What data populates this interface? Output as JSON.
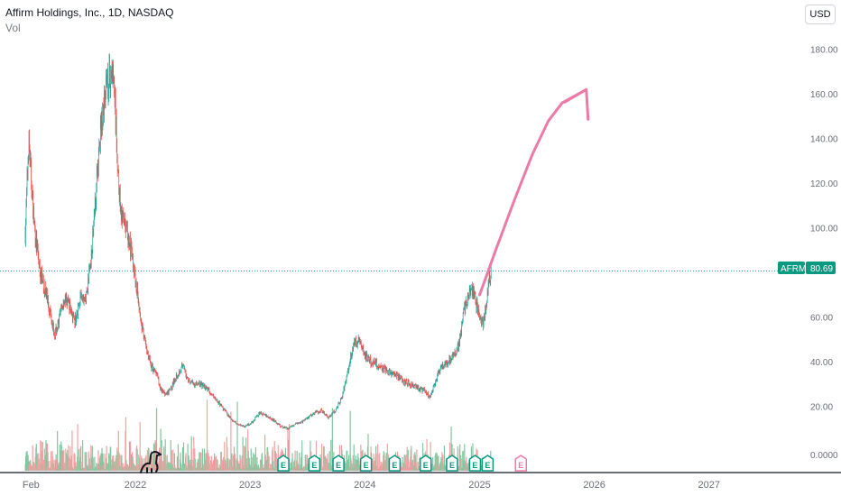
{
  "header": {
    "symbol_title": "Affirm Holdings, Inc., 1D, NASDAQ",
    "volume_label": "Vol",
    "currency_button": "USD"
  },
  "price_tag": {
    "symbol": "AFRM",
    "value": "80.69"
  },
  "colors": {
    "up": "#26a69a",
    "down": "#ef5350",
    "vol_up": "#80c7a0",
    "vol_down": "#f1a1a1",
    "arrow": "#ec7aa8",
    "tag_bg": "#089981",
    "earnings_past": "#089981",
    "earnings_future": "#ef7aa8"
  },
  "earnings_markers": {
    "label": "E",
    "past_dates": [
      2023.29,
      2023.56,
      2023.77,
      2024.01,
      2024.26,
      2024.53,
      2024.76,
      2024.96,
      2025.07
    ],
    "future_dates": [
      2025.36
    ]
  },
  "chart_data": {
    "type": "line",
    "title": "Affirm Holdings, Inc., 1D, NASDAQ",
    "xlabel": "",
    "ylabel": "",
    "x_tick_labels": [
      "Feb",
      "2022",
      "2023",
      "2024",
      "2025",
      "2026",
      "2027"
    ],
    "x_tick_values": [
      2021.09,
      2022.0,
      2023.0,
      2024.0,
      2025.0,
      2026.0,
      2027.0
    ],
    "y_ticks": [
      180,
      160,
      140,
      120,
      100,
      60,
      40,
      20
    ],
    "y_tick_labels": [
      "180.00",
      "160.00",
      "140.00",
      "120.00",
      "100.00",
      "60.00",
      "40.00",
      "20.00"
    ],
    "volume_axis_label": "0.0000",
    "ylim": [
      -8,
      190
    ],
    "xlim": [
      2020.82,
      2028.15
    ],
    "last_price": 80.69,
    "grid": false,
    "series": [
      {
        "x": [
          2021.04,
          2021.07,
          2021.1,
          2021.12,
          2021.17,
          2021.21,
          2021.26,
          2021.3,
          2021.34,
          2021.38,
          2021.43,
          2021.47,
          2021.52,
          2021.57,
          2021.62,
          2021.66,
          2021.7,
          2021.73,
          2021.76,
          2021.8,
          2021.82,
          2021.85,
          2021.88,
          2021.92,
          2021.97,
          2022.02,
          2022.06,
          2022.1,
          2022.14,
          2022.18,
          2022.22,
          2022.27,
          2022.31,
          2022.36,
          2022.41,
          2022.46,
          2022.51,
          2022.57,
          2022.62,
          2022.67,
          2022.72,
          2022.78,
          2022.84,
          2022.9,
          2022.96,
          2023.02,
          2023.08,
          2023.14,
          2023.2,
          2023.27,
          2023.33,
          2023.39,
          2023.45,
          2023.5,
          2023.56,
          2023.62,
          2023.68,
          2023.74,
          2023.8,
          2023.85,
          2023.9,
          2023.95,
          2024.0,
          2024.05,
          2024.1,
          2024.16,
          2024.22,
          2024.28,
          2024.34,
          2024.4,
          2024.46,
          2024.52,
          2024.57,
          2024.62,
          2024.67,
          2024.72,
          2024.77,
          2024.82,
          2024.86,
          2024.9,
          2024.93,
          2024.96,
          2025.0,
          2025.03,
          2025.06,
          2025.08,
          2025.1
        ],
        "values": [
          98,
          140,
          115,
          100,
          80,
          73,
          62,
          52,
          60,
          68,
          65,
          57,
          68,
          68,
          90,
          118,
          145,
          158,
          165,
          170,
          158,
          122,
          105,
          100,
          88,
          70,
          55,
          45,
          38,
          35,
          28,
          25,
          28,
          34,
          38,
          32,
          30,
          30,
          28,
          25,
          22,
          18,
          14,
          12,
          11,
          13,
          17,
          16,
          14,
          11,
          10,
          12,
          13,
          15,
          17,
          18,
          15,
          18,
          24,
          35,
          48,
          50,
          43,
          40,
          39,
          37,
          35,
          34,
          31,
          30,
          28,
          27,
          24,
          32,
          38,
          40,
          42,
          48,
          62,
          70,
          73,
          68,
          60,
          57,
          67,
          75,
          80.69
        ]
      }
    ],
    "projection_arrow": {
      "x": [
        2025.0,
        2025.14,
        2025.3,
        2025.46,
        2025.6,
        2025.72,
        2025.93
      ],
      "values": [
        70,
        90,
        112,
        133,
        148,
        156,
        162
      ]
    }
  }
}
